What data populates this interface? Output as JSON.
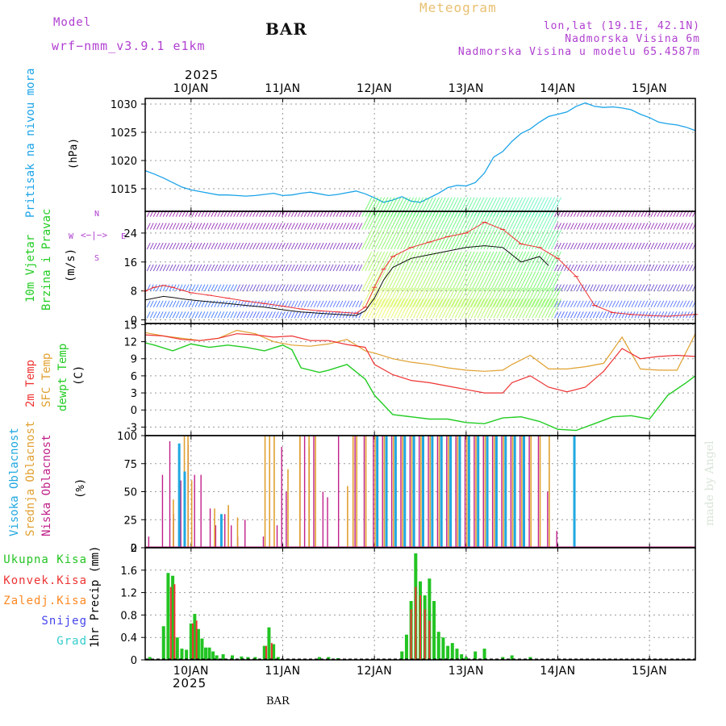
{
  "header": {
    "model_label": "Model",
    "model_name": "wrf−nmm_v3.9.1 e1km",
    "station": "BAR",
    "product": "Meteogram",
    "coords": "lon,lat (19.1E, 42.1N)",
    "elevation": "Nadmorska Visina 6m",
    "model_elevation": "Nadmorska Visina u modelu 65.4587m",
    "year_top": "2025",
    "year_bottom": "2025",
    "footer_station": "BAR",
    "watermark": "made by Angel"
  },
  "colors": {
    "pressure": "#1aa3e8",
    "temp2m": "#ee3333",
    "sfc": "#e0a030",
    "dewpt": "#22cc22",
    "cloud_high": "#20a8e0",
    "cloud_mid": "#e0a030",
    "cloud_low": "#c0208a",
    "rain_total": "#22c422",
    "rain_conv": "#ee3333",
    "rain_frz": "#ff8822",
    "snow": "#4444ee",
    "graupel": "#33cccc",
    "purple_text": "#b040d0",
    "gold_text": "#e8c070"
  },
  "panel_labels": {
    "pressure": {
      "name": "Pritisak na nivou mora",
      "unit": "(hPa)"
    },
    "wind": {
      "name1": "10m Vjetar",
      "name2": "Brzina i Pravac",
      "unit": "(m/s)",
      "compass_ns": "N",
      "compass_s": "S",
      "compass_w": "W",
      "compass_e": "E",
      "compass_arrows": "<−|−>"
    },
    "temp": {
      "t2m": "2m Temp",
      "sfc": "SFC Temp",
      "dew": "dewpt Temp",
      "unit": "(C)"
    },
    "cloud": {
      "high": "Visoka Oblacnost",
      "mid": "Srednja Oblacnost",
      "low": "Niska Oblacnost",
      "unit": "(%)"
    },
    "precip": {
      "unit": "1hr Precip (mm)"
    }
  },
  "precip_legend": [
    "Ukupna Kisa",
    "Konvek.Kisa",
    "Zaledj.Kisa",
    "Snijeg",
    "Grad"
  ],
  "chart_data": [
    {
      "type": "line",
      "xlabels": [
        "10JAN",
        "11JAN",
        "12JAN",
        "13JAN",
        "14JAN",
        "15JAN"
      ],
      "x_range_days": [
        9.5,
        15.5
      ],
      "ylim": [
        1011,
        1031
      ],
      "yticks": [
        "1015",
        "1020",
        "1025",
        "1030"
      ],
      "series": [
        {
          "x": [
            9.5,
            9.6,
            9.7,
            9.8,
            9.9,
            10.0,
            10.1,
            10.2,
            10.3,
            10.4,
            10.5,
            10.6,
            10.7,
            10.8,
            10.9,
            11.0,
            11.1,
            11.2,
            11.3,
            11.4,
            11.5,
            11.6,
            11.7,
            11.8,
            11.9,
            12.0,
            12.1,
            12.2,
            12.3,
            12.4,
            12.5,
            12.6,
            12.7,
            12.8,
            12.9,
            13.0,
            13.1,
            13.2,
            13.3,
            13.4,
            13.5,
            13.6,
            13.7,
            13.8,
            13.9,
            14.0,
            14.1,
            14.2,
            14.3,
            14.4,
            14.5,
            14.6,
            14.7,
            14.8,
            14.9,
            15.0,
            15.1,
            15.2,
            15.3,
            15.4,
            15.5
          ],
          "values": [
            1018.2,
            1017.6,
            1016.9,
            1016.1,
            1015.3,
            1014.8,
            1014.5,
            1014.2,
            1013.9,
            1013.9,
            1013.8,
            1013.7,
            1013.8,
            1014.0,
            1014.2,
            1013.8,
            1013.9,
            1014.2,
            1014.4,
            1014.1,
            1013.8,
            1014.0,
            1014.3,
            1014.6,
            1014.1,
            1013.4,
            1012.6,
            1013.0,
            1013.6,
            1012.8,
            1012.6,
            1013.4,
            1014.2,
            1015.2,
            1015.6,
            1015.5,
            1016.1,
            1017.8,
            1020.6,
            1021.6,
            1023.4,
            1024.8,
            1025.6,
            1026.8,
            1027.8,
            1028.2,
            1028.6,
            1029.6,
            1030.2,
            1029.6,
            1029.4,
            1029.5,
            1029.3,
            1029.0,
            1028.2,
            1027.6,
            1026.8,
            1026.5,
            1026.3,
            1025.9,
            1025.3
          ]
        }
      ]
    },
    {
      "type": "line",
      "ylim": [
        -1,
        30
      ],
      "yticks": [
        "0",
        "8",
        "16",
        "24"
      ],
      "series": [
        {
          "name": "speed",
          "x": [
            9.5,
            9.6,
            9.7,
            9.8,
            9.9,
            10.0,
            10.2,
            10.4,
            10.6,
            10.8,
            11.0,
            11.2,
            11.4,
            11.6,
            11.8,
            11.9,
            12.0,
            12.1,
            12.2,
            12.4,
            12.6,
            12.8,
            13.0,
            13.2,
            13.4,
            13.6,
            13.8,
            13.9
          ],
          "values": [
            5.5,
            6.0,
            6.5,
            6.2,
            5.8,
            5.5,
            5.0,
            4.5,
            4.0,
            3.5,
            2.8,
            2.2,
            1.8,
            1.5,
            1.2,
            2.5,
            6.0,
            11.0,
            14.5,
            17.0,
            18.0,
            19.0,
            20.0,
            20.5,
            20.0,
            16.0,
            17.5,
            15.0
          ]
        },
        {
          "name": "gust",
          "x": [
            9.5,
            9.6,
            9.7,
            9.8,
            9.9,
            10.0,
            10.2,
            10.4,
            10.6,
            10.8,
            11.0,
            11.2,
            11.4,
            11.6,
            11.8,
            11.9,
            12.0,
            12.1,
            12.2,
            12.4,
            12.6,
            12.8,
            13.0,
            13.2,
            13.4,
            13.6,
            13.8,
            14.0,
            14.2,
            14.4,
            14.6,
            14.8,
            15.0,
            15.2,
            15.5
          ],
          "values": [
            8.0,
            9.0,
            9.5,
            9.0,
            8.2,
            7.5,
            6.8,
            6.0,
            5.2,
            4.5,
            3.8,
            3.0,
            2.5,
            2.2,
            1.8,
            3.5,
            9.0,
            14.0,
            17.5,
            20.0,
            21.5,
            23.0,
            24.0,
            27.0,
            25.0,
            21.0,
            20.0,
            17.0,
            12.0,
            4.0,
            2.0,
            1.5,
            1.2,
            1.0,
            1.5
          ]
        }
      ]
    },
    {
      "type": "line",
      "ylim": [
        -4.5,
        15.2
      ],
      "yticks": [
        "-3",
        "0",
        "3",
        "6",
        "9",
        "12",
        "15"
      ],
      "series": [
        {
          "name": "2m Temp",
          "x": [
            9.5,
            9.7,
            9.9,
            10.1,
            10.3,
            10.5,
            10.7,
            10.9,
            11.1,
            11.3,
            11.5,
            11.7,
            11.9,
            12.0,
            12.2,
            12.4,
            12.6,
            12.8,
            13.0,
            13.2,
            13.4,
            13.5,
            13.7,
            13.9,
            14.1,
            14.3,
            14.5,
            14.7,
            14.9,
            15.1,
            15.3,
            15.5
          ],
          "values": [
            13.2,
            13.0,
            12.4,
            12.2,
            12.6,
            13.4,
            13.2,
            12.8,
            13.0,
            12.2,
            12.2,
            11.5,
            11.0,
            8.0,
            6.2,
            5.2,
            4.8,
            4.2,
            3.6,
            3.0,
            3.0,
            4.8,
            6.0,
            4.0,
            3.2,
            4.0,
            6.8,
            10.8,
            9.0,
            9.4,
            9.6,
            9.4
          ]
        },
        {
          "name": "SFC Temp",
          "x": [
            9.5,
            9.7,
            9.9,
            10.1,
            10.3,
            10.5,
            10.7,
            10.9,
            11.1,
            11.3,
            11.5,
            11.7,
            11.9,
            12.0,
            12.2,
            12.4,
            12.6,
            12.8,
            13.0,
            13.2,
            13.4,
            13.5,
            13.7,
            13.9,
            14.1,
            14.3,
            14.5,
            14.7,
            14.9,
            15.1,
            15.3,
            15.5
          ],
          "values": [
            13.6,
            13.0,
            12.6,
            12.2,
            12.6,
            14.0,
            13.4,
            12.0,
            11.4,
            11.2,
            11.6,
            12.4,
            10.4,
            10.0,
            9.0,
            8.4,
            8.0,
            7.4,
            7.0,
            6.8,
            7.0,
            8.0,
            9.6,
            7.2,
            7.2,
            7.6,
            8.2,
            12.8,
            7.2,
            7.0,
            7.0,
            13.4
          ]
        },
        {
          "name": "dewpt Temp",
          "x": [
            9.5,
            9.6,
            9.8,
            10.0,
            10.2,
            10.4,
            10.6,
            10.8,
            11.0,
            11.1,
            11.2,
            11.4,
            11.5,
            11.7,
            11.9,
            12.0,
            12.2,
            12.4,
            12.6,
            12.8,
            13.0,
            13.2,
            13.4,
            13.6,
            13.8,
            14.0,
            14.2,
            14.4,
            14.6,
            14.8,
            15.0,
            15.2,
            15.4,
            15.5
          ],
          "values": [
            11.8,
            11.4,
            10.4,
            11.6,
            11.0,
            11.4,
            11.0,
            10.4,
            11.4,
            10.6,
            7.4,
            6.6,
            7.0,
            8.0,
            5.4,
            2.6,
            -0.8,
            -1.2,
            -1.6,
            -1.6,
            -2.2,
            -2.4,
            -1.4,
            -1.2,
            -2.0,
            -3.4,
            -3.6,
            -2.4,
            -1.2,
            -1.0,
            -1.6,
            2.6,
            4.8,
            6.0
          ]
        }
      ]
    },
    {
      "type": "bar",
      "ylim": [
        0,
        100
      ],
      "yticks": [
        "0",
        "25",
        "50",
        "75",
        "100"
      ],
      "series": [
        {
          "name": "Niska Oblacnost",
          "x": [
            9.55,
            9.7,
            9.78,
            9.82,
            9.9,
            9.98,
            10.05,
            10.12,
            10.22,
            10.28,
            10.38,
            10.45,
            10.52,
            10.6,
            10.8,
            10.95,
            11.0,
            11.05,
            11.2,
            11.25,
            11.3,
            11.35,
            11.45,
            11.5,
            11.62,
            11.8,
            11.9,
            12.0,
            12.1,
            12.2,
            12.3,
            12.4,
            12.5,
            12.6,
            12.7,
            12.8,
            12.9,
            13.0,
            13.1,
            13.2,
            13.3,
            13.4,
            13.5,
            13.6,
            13.7,
            13.8,
            13.9,
            14.0
          ],
          "values": [
            10,
            65,
            95,
            30,
            60,
            92,
            65,
            65,
            35,
            20,
            30,
            20,
            10,
            25,
            10,
            20,
            90,
            50,
            100,
            100,
            90,
            100,
            50,
            45,
            100,
            100,
            100,
            100,
            100,
            100,
            100,
            100,
            100,
            100,
            100,
            100,
            100,
            100,
            100,
            100,
            100,
            100,
            100,
            100,
            100,
            100,
            50,
            15
          ]
        },
        {
          "name": "Srednja Oblacnost",
          "x": [
            9.8,
            9.92,
            9.96,
            10.0,
            10.25,
            10.4,
            10.5,
            10.8,
            10.85,
            10.9,
            11.05,
            11.18,
            11.28,
            11.35,
            11.7,
            11.76,
            11.8,
            11.9,
            12.0,
            12.1,
            12.2,
            12.3,
            12.4,
            12.5,
            12.6,
            12.7,
            12.8,
            12.9,
            13.0,
            13.1,
            13.2,
            13.3,
            13.4,
            13.5,
            13.6,
            13.7,
            13.8,
            13.9
          ],
          "values": [
            43,
            100,
            100,
            60,
            35,
            38,
            27,
            100,
            100,
            100,
            70,
            100,
            100,
            100,
            55,
            100,
            100,
            100,
            100,
            100,
            100,
            100,
            100,
            100,
            100,
            100,
            100,
            100,
            100,
            100,
            100,
            100,
            100,
            100,
            100,
            100,
            100,
            100
          ]
        },
        {
          "name": "Visoka Oblacnost",
          "x": [
            9.84,
            9.9,
            10.3,
            12.0,
            12.1,
            12.2,
            12.3,
            12.4,
            12.5,
            12.6,
            12.7,
            12.8,
            12.9,
            13.0,
            13.1,
            13.2,
            13.3,
            13.4,
            13.5,
            13.6,
            14.15
          ],
          "values": [
            93,
            68,
            30,
            100,
            100,
            100,
            100,
            100,
            100,
            100,
            100,
            100,
            100,
            100,
            100,
            100,
            100,
            100,
            100,
            100,
            100
          ]
        }
      ]
    },
    {
      "type": "bar",
      "ylim": [
        0,
        2
      ],
      "yticks": [
        "0",
        "0.4",
        "0.8",
        "1.2",
        "1.6",
        "2"
      ],
      "series": [
        {
          "name": "Ukupna Kisa",
          "x": [
            9.55,
            9.7,
            9.75,
            9.8,
            9.85,
            9.9,
            9.95,
            10.0,
            10.04,
            10.08,
            10.12,
            10.16,
            10.2,
            10.24,
            10.28,
            10.35,
            10.45,
            10.55,
            10.62,
            10.7,
            10.8,
            10.85,
            10.9,
            10.95,
            11.4,
            11.5,
            11.6,
            12.3,
            12.35,
            12.4,
            12.45,
            12.5,
            12.55,
            12.6,
            12.65,
            12.7,
            12.75,
            12.8,
            12.85,
            12.9,
            12.95,
            13.0,
            13.1,
            13.2,
            13.4,
            13.5,
            13.7
          ],
          "values": [
            0.05,
            0.6,
            1.55,
            1.5,
            0.4,
            0.2,
            0.18,
            0.65,
            0.82,
            0.55,
            0.38,
            0.22,
            0.22,
            0.15,
            0.08,
            0.1,
            0.08,
            0.06,
            0.05,
            0.05,
            0.25,
            0.58,
            0.28,
            0.05,
            0.05,
            0.05,
            0.03,
            0.15,
            0.45,
            1.05,
            1.9,
            1.4,
            1.15,
            1.45,
            1.05,
            0.5,
            0.4,
            0.25,
            0.3,
            0.2,
            0.1,
            0.05,
            0.15,
            0.2,
            0.05,
            0.08,
            0.05
          ]
        },
        {
          "name": "Konvek.Kisa",
          "x": [
            9.78,
            9.82,
            10.02,
            10.06,
            10.82,
            10.88,
            12.4,
            12.45,
            12.5,
            12.55,
            12.6
          ],
          "values": [
            1.3,
            1.35,
            0.65,
            0.7,
            0.25,
            0.3,
            0.9,
            1.3,
            1.15,
            0.9,
            0.7
          ]
        }
      ]
    }
  ]
}
